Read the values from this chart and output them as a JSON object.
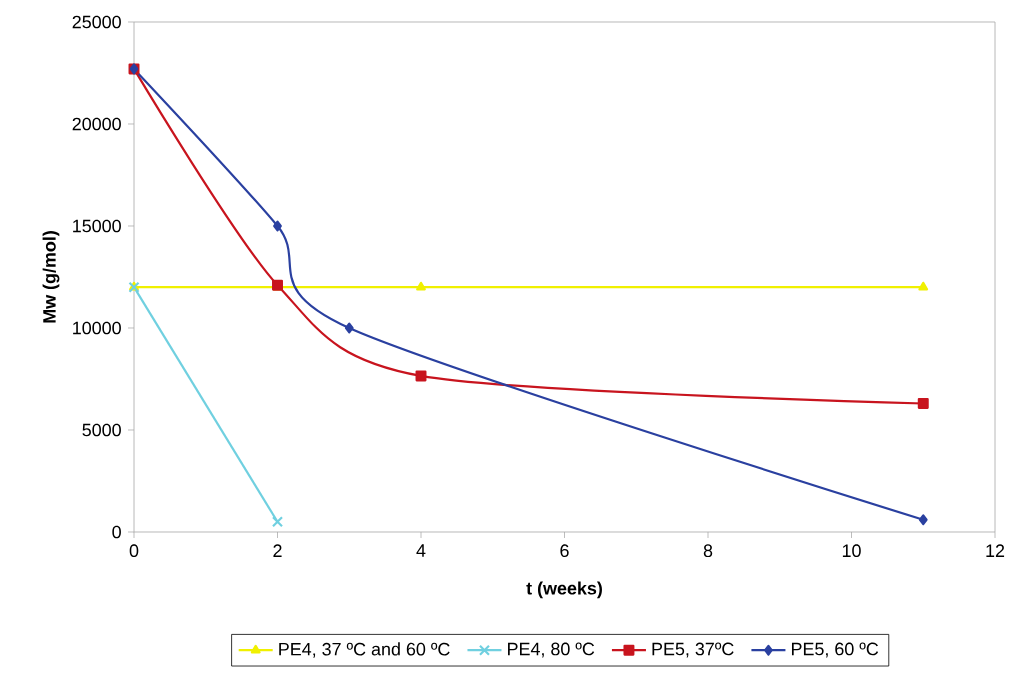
{
  "chart_data": {
    "type": "line",
    "xlabel": "t (weeks)",
    "ylabel": "Mw (g/mol)",
    "xlim": [
      0,
      12
    ],
    "ylim": [
      0,
      25000
    ],
    "xticks": [
      0,
      2,
      4,
      6,
      8,
      10,
      12
    ],
    "yticks": [
      0,
      5000,
      10000,
      15000,
      20000,
      25000
    ],
    "grid": false,
    "legend": "bottom",
    "line_style": "solid",
    "series": [
      {
        "name": "PE4, 37 ºC and 60 ºC",
        "color": "#f0f000",
        "marker": "triangle",
        "x": [
          0,
          2,
          4,
          11
        ],
        "values": [
          12000,
          12000,
          12000,
          12000
        ]
      },
      {
        "name": "PE4, 80 ºC",
        "color": "#70d0e0",
        "marker": "cross",
        "x": [
          0,
          2
        ],
        "values": [
          12000,
          500
        ]
      },
      {
        "name": "PE5, 37ºC",
        "color": "#c8141e",
        "marker": "square",
        "x": [
          0,
          2,
          4,
          11
        ],
        "values": [
          22700,
          12100,
          7650,
          6300
        ]
      },
      {
        "name": "PE5, 60 ºC",
        "color": "#2a40a0",
        "marker": "diamond",
        "x": [
          0,
          2,
          3,
          11
        ],
        "values": [
          22700,
          15000,
          10000,
          600
        ]
      }
    ]
  }
}
